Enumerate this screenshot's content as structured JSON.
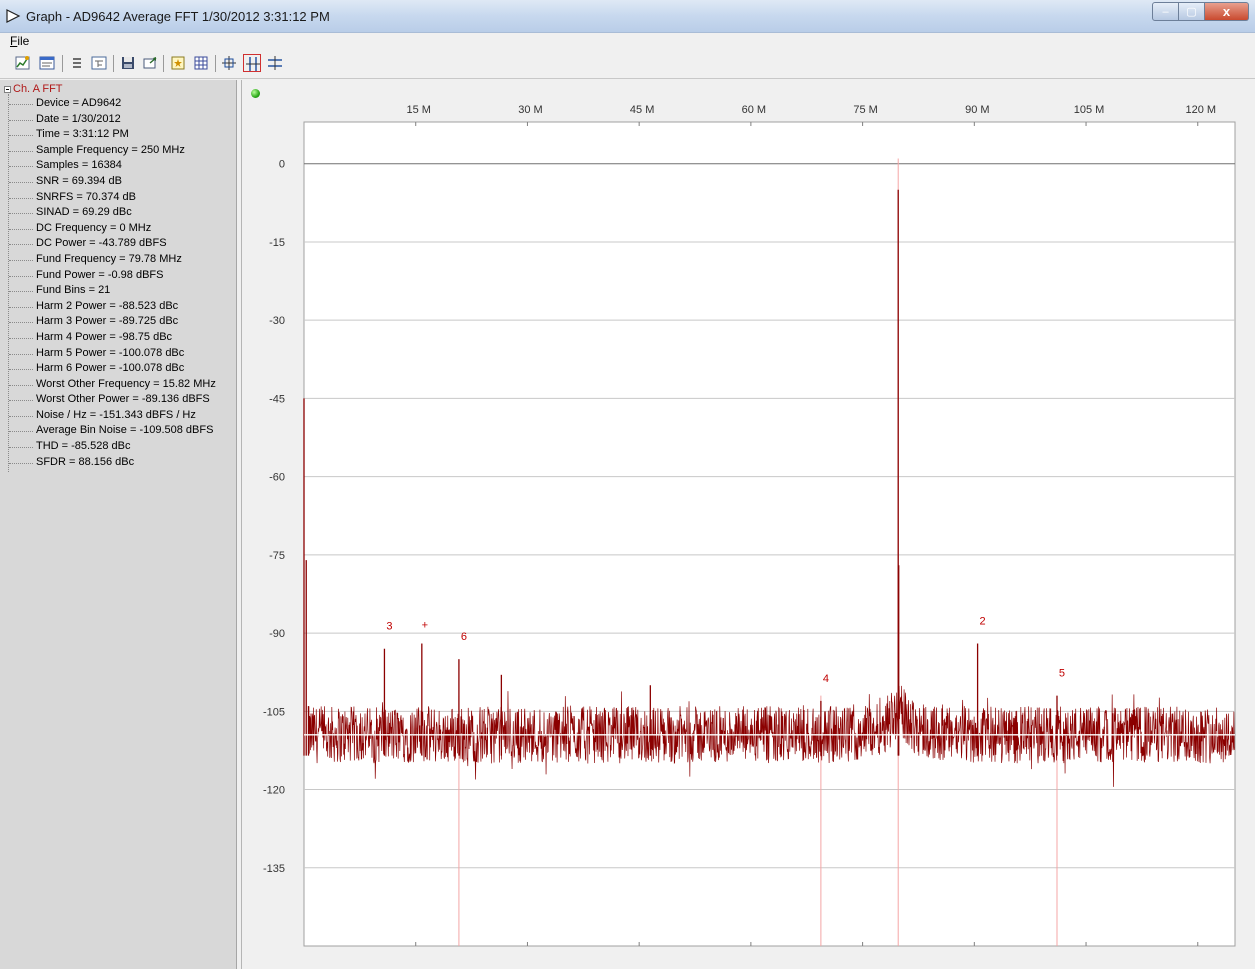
{
  "window": {
    "title": "Graph - AD9642 Average FFT 1/30/2012 3:31:12 PM",
    "controls": {
      "minimize": "–",
      "maximize": "▢",
      "close": "x"
    }
  },
  "menu": {
    "file": "File"
  },
  "toolbar": {
    "buttons": [
      "graph-wizard-icon",
      "chart-settings-icon",
      "list-icon",
      "tree-view-icon",
      "save-icon",
      "export-icon",
      "marker-icon",
      "grid-icon",
      "zoom-all-icon",
      "zoom-horizontal-icon",
      "zoom-vertical-icon"
    ],
    "active_button": "zoom-horizontal-icon"
  },
  "tree": {
    "root": "Ch. A FFT",
    "items": [
      "Device = AD9642",
      "Date = 1/30/2012",
      "Time = 3:31:12 PM",
      "Sample Frequency = 250 MHz",
      "Samples = 16384",
      "SNR = 69.394 dB",
      "SNRFS = 70.374 dB",
      "SINAD = 69.29 dBc",
      "DC Frequency = 0 MHz",
      "DC Power = -43.789 dBFS",
      "Fund Frequency = 79.78 MHz",
      "Fund Power = -0.98 dBFS",
      "Fund Bins = 21",
      "Harm 2 Power = -88.523 dBc",
      "Harm 3 Power = -89.725 dBc",
      "Harm 4 Power = -98.75 dBc",
      "Harm 5 Power = -100.078 dBc",
      "Harm 6 Power = -100.078 dBc",
      "Worst Other Frequency = 15.82 MHz",
      "Worst Other Power = -89.136 dBFS",
      "Noise / Hz = -151.343 dBFS / Hz",
      "Average Bin Noise = -109.508 dBFS",
      "THD = -85.528 dBc",
      "SFDR = 88.156 dBc"
    ]
  },
  "colors": {
    "trace": "#8b0000",
    "marker_line": "#f4a6a6",
    "marker_label": "#c00000",
    "grid": "#c8c8c8",
    "plot_bg": "#ffffff",
    "noise_floor": "#ffffff"
  },
  "chart_data": {
    "type": "line",
    "title": "",
    "xlabel": "",
    "ylabel": "",
    "x_axis_position": "top",
    "xlim": [
      0,
      125
    ],
    "ylim": [
      -150,
      8
    ],
    "x_ticks": [
      15,
      30,
      45,
      60,
      75,
      90,
      105,
      120
    ],
    "x_tick_labels": [
      "15 M",
      "30 M",
      "45 M",
      "60 M",
      "75 M",
      "90 M",
      "105 M",
      "120 M"
    ],
    "y_ticks": [
      0,
      -15,
      -30,
      -45,
      -60,
      -75,
      -90,
      -105,
      -120,
      -135
    ],
    "y_tick_labels": [
      "0",
      "-15",
      "-30",
      "-45",
      "-60",
      "-75",
      "-90",
      "-105",
      "-120",
      "-135"
    ],
    "grid": "horizontal",
    "noise_floor_db": -109.5,
    "series": [
      {
        "spectrum_points": [
          {
            "x": 0,
            "y": -45
          },
          {
            "x": 0.3,
            "y": -76
          },
          {
            "x": 0.6,
            "y": -104
          },
          {
            "x": 10.8,
            "y": -93
          },
          {
            "x": 15.82,
            "y": -92
          },
          {
            "x": 20.8,
            "y": -95
          },
          {
            "x": 26.5,
            "y": -98
          },
          {
            "x": 46.5,
            "y": -100
          },
          {
            "x": 69.4,
            "y": -103
          },
          {
            "x": 79.78,
            "y": -5
          },
          {
            "x": 79.85,
            "y": -77
          },
          {
            "x": 90.44,
            "y": -92
          },
          {
            "x": 101.1,
            "y": -102
          }
        ]
      }
    ],
    "markers": [
      {
        "label": "3",
        "x": 10.8,
        "y": -93
      },
      {
        "label": "+",
        "x": 15.82,
        "y": -92
      },
      {
        "label": "6",
        "x": 20.8,
        "y": -95
      },
      {
        "label": "4",
        "x": 69.4,
        "y": -103
      },
      {
        "label": "2",
        "x": 90.44,
        "y": -92
      },
      {
        "label": "5",
        "x": 101.1,
        "y": -102
      }
    ],
    "marker_lines_x": [
      20.8,
      69.4,
      79.78,
      101.1
    ]
  }
}
